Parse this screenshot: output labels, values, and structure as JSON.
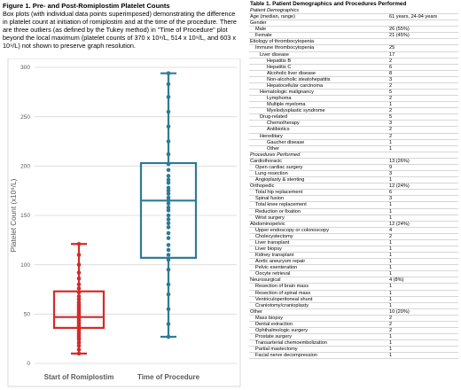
{
  "figure": {
    "title": "Figure 1. Pre- and Post-Romiplostim Platelet Counts",
    "caption": "Box plots (with individual data points superimposed) demonstrating the difference in platelet count at initiation of romiplostim and at the time of the procedure. There are three outliers (as defined by the Tukey method) in \"Time of Procedure\" plot beyond the local maximum (platelet counts of 370 x 10⁹/L, 514 x 10⁹/L, and 603 x 10⁹/L) not shown to preserve graph resolution."
  },
  "chart_data": {
    "type": "box",
    "ylabel": "Platelet Count (x10⁹/L)",
    "ylim": [
      0,
      300
    ],
    "yticks": [
      0,
      50,
      100,
      150,
      200,
      250,
      300
    ],
    "categories": [
      "Start of Romiplostim",
      "Time of Procedure"
    ],
    "series": [
      {
        "name": "Start of Romiplostim",
        "color": "#d42a2a",
        "whisker_low": 10,
        "q1": 36,
        "median": 47,
        "q3": 73,
        "whisker_high": 121,
        "points": [
          10,
          14,
          18,
          21,
          24,
          26,
          28,
          30,
          32,
          34,
          36,
          38,
          40,
          42,
          44,
          46,
          47,
          48,
          50,
          52,
          54,
          56,
          58,
          60,
          62,
          65,
          68,
          72,
          76,
          80,
          86,
          92,
          100,
          110,
          121
        ]
      },
      {
        "name": "Time of Procedure",
        "color": "#2e7b96",
        "whisker_low": 27,
        "q1": 107,
        "median": 165,
        "q3": 203,
        "whisker_high": 294,
        "points": [
          27,
          40,
          55,
          70,
          80,
          95,
          105,
          110,
          115,
          120,
          127,
          132,
          138,
          142,
          146,
          150,
          155,
          158,
          162,
          165,
          168,
          172,
          175,
          178,
          183,
          186,
          190,
          196,
          202,
          212,
          225,
          240,
          255,
          270,
          283,
          294
        ]
      }
    ]
  },
  "table": {
    "title": "Table 1. Patient Demographics and Procedures Performed",
    "rows": [
      {
        "label": "Patient Demographics",
        "value": "",
        "indent": 0,
        "kind": "sec"
      },
      {
        "label": "Age (median, range)",
        "value": "61 years, 24-94 years",
        "indent": 0,
        "kind": "row"
      },
      {
        "label": "Gender",
        "value": "",
        "indent": 0,
        "kind": "row"
      },
      {
        "label": "Male",
        "value": "26 (55%)",
        "indent": 1,
        "kind": "row"
      },
      {
        "label": "Female",
        "value": "21 (45%)",
        "indent": 1,
        "kind": "row"
      },
      {
        "label": "Etiology of thrombocytopenia",
        "value": "",
        "indent": 0,
        "kind": "row"
      },
      {
        "label": "Immune thrombocytopenia",
        "value": "25",
        "indent": 1,
        "kind": "row"
      },
      {
        "label": "Liver disease",
        "value": "17",
        "indent": 2,
        "kind": "row"
      },
      {
        "label": "Hepatitis B",
        "value": "2",
        "indent": 3,
        "kind": "row"
      },
      {
        "label": "Hepatitis C",
        "value": "6",
        "indent": 3,
        "kind": "row"
      },
      {
        "label": "Alcoholic liver disease",
        "value": "8",
        "indent": 3,
        "kind": "row"
      },
      {
        "label": "Non-alcoholic steatohepatitis",
        "value": "3",
        "indent": 3,
        "kind": "row"
      },
      {
        "label": "Hepatocellular carcinoma",
        "value": "2",
        "indent": 3,
        "kind": "row"
      },
      {
        "label": "Hematologic malignancy",
        "value": "5",
        "indent": 2,
        "kind": "row"
      },
      {
        "label": "Lymphoma",
        "value": "2",
        "indent": 3,
        "kind": "row"
      },
      {
        "label": "Multiple myeloma",
        "value": "1",
        "indent": 3,
        "kind": "row"
      },
      {
        "label": "Myelodysplastic syndrome",
        "value": "2",
        "indent": 3,
        "kind": "row"
      },
      {
        "label": "Drug-related",
        "value": "5",
        "indent": 2,
        "kind": "row"
      },
      {
        "label": "Chemotherapy",
        "value": "3",
        "indent": 3,
        "kind": "row"
      },
      {
        "label": "Antibiotics",
        "value": "2",
        "indent": 3,
        "kind": "row"
      },
      {
        "label": "Hereditary",
        "value": "2",
        "indent": 2,
        "kind": "row"
      },
      {
        "label": "Gaucher disease",
        "value": "1",
        "indent": 3,
        "kind": "row"
      },
      {
        "label": "Other",
        "value": "1",
        "indent": 3,
        "kind": "row"
      },
      {
        "label": "Procedures Performed",
        "value": "",
        "indent": 0,
        "kind": "sec"
      },
      {
        "label": "Cardiothoracic",
        "value": "13 (26%)",
        "indent": 0,
        "kind": "row"
      },
      {
        "label": "Open cardiac surgery",
        "value": "9",
        "indent": 1,
        "kind": "row"
      },
      {
        "label": "Lung resection",
        "value": "3",
        "indent": 1,
        "kind": "row"
      },
      {
        "label": "Angioplasty & stenting",
        "value": "1",
        "indent": 1,
        "kind": "row"
      },
      {
        "label": "Orthopedic",
        "value": "12 (24%)",
        "indent": 0,
        "kind": "row"
      },
      {
        "label": "Total hip replacement",
        "value": "6",
        "indent": 1,
        "kind": "row"
      },
      {
        "label": "Spinal fusion",
        "value": "3",
        "indent": 1,
        "kind": "row"
      },
      {
        "label": "Total knee replacement",
        "value": "1",
        "indent": 1,
        "kind": "row"
      },
      {
        "label": "Reduction or fixation",
        "value": "1",
        "indent": 1,
        "kind": "row"
      },
      {
        "label": "Wrist surgery",
        "value": "1",
        "indent": 1,
        "kind": "row"
      },
      {
        "label": "Abdominopelvic",
        "value": "12 (24%)",
        "indent": 0,
        "kind": "row"
      },
      {
        "label": "Upper endoscopy or colonoscopy",
        "value": "4",
        "indent": 1,
        "kind": "row"
      },
      {
        "label": "Cholecystectomy",
        "value": "2",
        "indent": 1,
        "kind": "row"
      },
      {
        "label": "Liver transplant",
        "value": "1",
        "indent": 1,
        "kind": "row"
      },
      {
        "label": "Liver biopsy",
        "value": "1",
        "indent": 1,
        "kind": "row"
      },
      {
        "label": "Kidney transplant",
        "value": "1",
        "indent": 1,
        "kind": "row"
      },
      {
        "label": "Aortic aneurysm repair",
        "value": "1",
        "indent": 1,
        "kind": "row"
      },
      {
        "label": "Pelvic exenteration",
        "value": "1",
        "indent": 1,
        "kind": "row"
      },
      {
        "label": "Oocyte retrieval",
        "value": "1",
        "indent": 1,
        "kind": "row"
      },
      {
        "label": "Neurosurgical",
        "value": "4 (8%)",
        "indent": 0,
        "kind": "row"
      },
      {
        "label": "Resection of brain mass",
        "value": "1",
        "indent": 1,
        "kind": "row"
      },
      {
        "label": "Resection of spinal mass",
        "value": "1",
        "indent": 1,
        "kind": "row"
      },
      {
        "label": "Ventriculoperitoneal shunt",
        "value": "1",
        "indent": 1,
        "kind": "row"
      },
      {
        "label": "Craniotomy/cranioplasty",
        "value": "1",
        "indent": 1,
        "kind": "row"
      },
      {
        "label": "Other",
        "value": "10 (20%)",
        "indent": 0,
        "kind": "row"
      },
      {
        "label": "Mass biopsy",
        "value": "2",
        "indent": 1,
        "kind": "row"
      },
      {
        "label": "Dental extraction",
        "value": "2",
        "indent": 1,
        "kind": "row"
      },
      {
        "label": "Ophthalmologic surgery",
        "value": "2",
        "indent": 1,
        "kind": "row"
      },
      {
        "label": "Prostate surgery",
        "value": "1",
        "indent": 1,
        "kind": "row"
      },
      {
        "label": "Transarterial chemoembolization",
        "value": "1",
        "indent": 1,
        "kind": "row"
      },
      {
        "label": "Partial mastectomy",
        "value": "1",
        "indent": 1,
        "kind": "row"
      },
      {
        "label": "Facial nerve decompression",
        "value": "1",
        "indent": 1,
        "kind": "row"
      }
    ]
  }
}
